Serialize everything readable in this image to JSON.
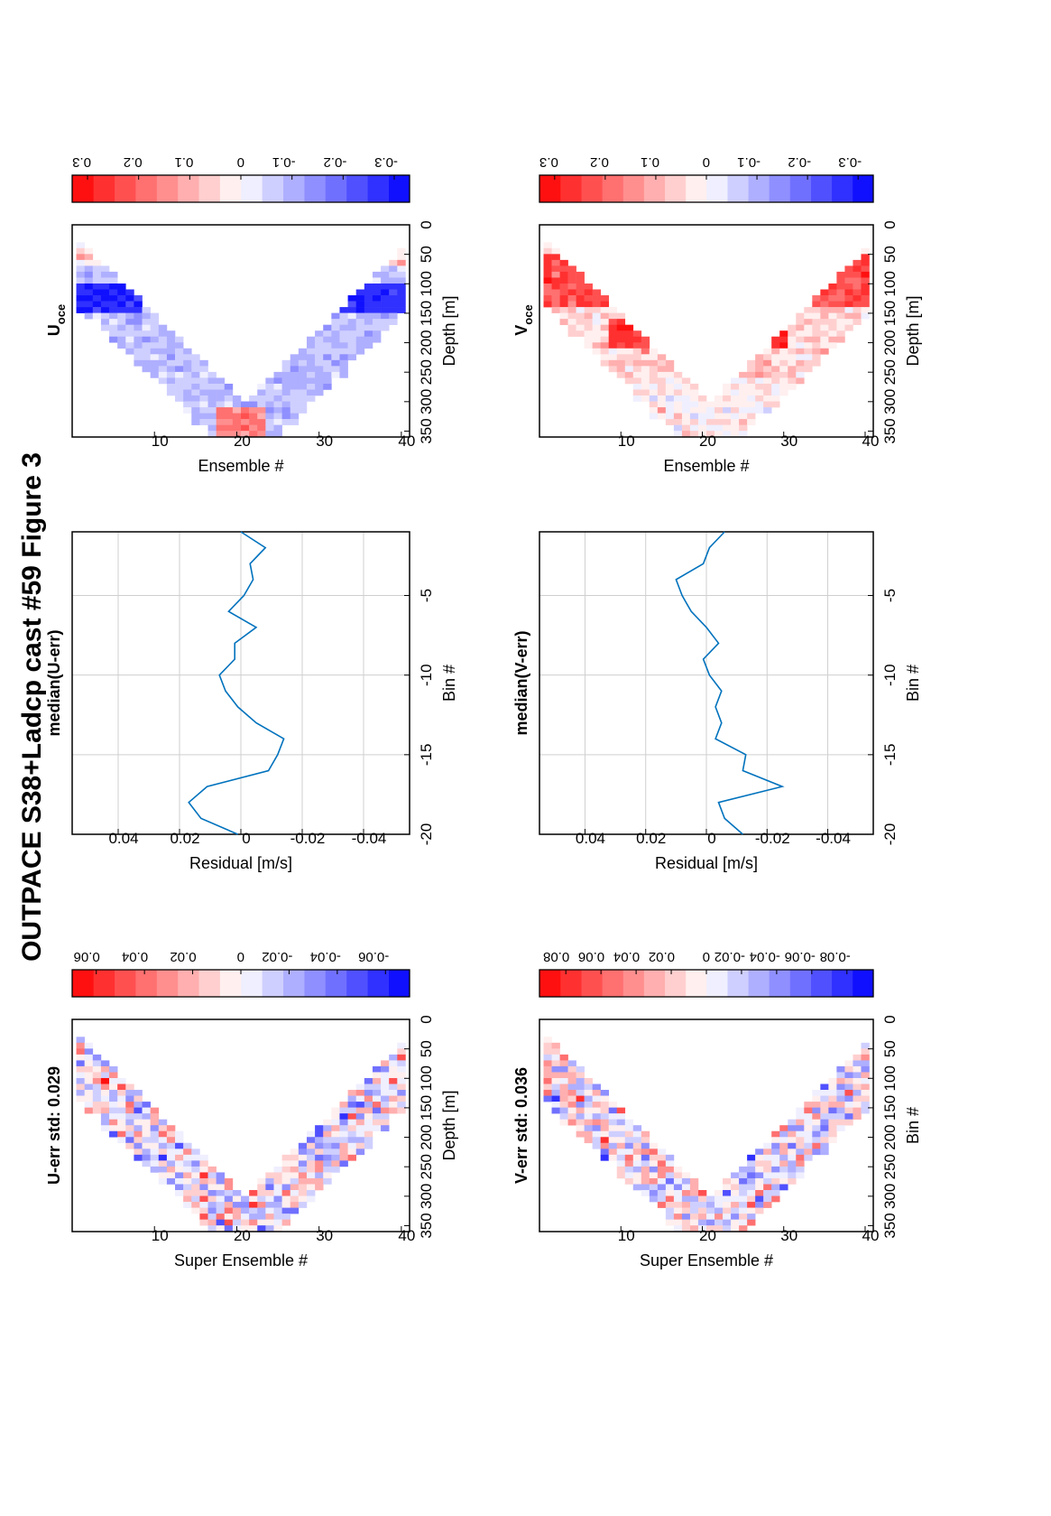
{
  "figure_title": "OUTPACE S38+Ladcp cast #59  Figure 3",
  "orientation": "landscape page rotated 90° counter-clockwise",
  "colors": {
    "red": "#ff0000",
    "white": "#ffffff",
    "blue": "#0000ff",
    "line": "#0072bd",
    "grid": "#cfcfcf"
  },
  "chart_data": [
    {
      "id": "u_err",
      "type": "heatmap",
      "title": "U-err std: 0.029",
      "xlabel": "Super Ensemble #",
      "ylabel": "Depth [m]",
      "xlim": [
        0,
        41
      ],
      "ylim": [
        0,
        360
      ],
      "xticks": [
        10,
        20,
        30,
        40
      ],
      "yticks": [
        0,
        50,
        100,
        150,
        200,
        250,
        300,
        350
      ],
      "colorbar": {
        "ticks": [
          0.06,
          0.04,
          0.02,
          0,
          -0.02,
          -0.04,
          -0.06
        ],
        "tick_labels": [
          "0.06",
          "0.04",
          "0.02",
          "0",
          "-0.02",
          "-0.04",
          "-0.06"
        ],
        "range": [
          -0.07,
          0.07
        ]
      },
      "shape": "V-shaped cast coverage: upper depth ~40 m at ensembles 1 and 41, deepest ~350 m at ensemble 21, band ~100 m thick",
      "notes": "random residual noise, mostly within ±0.03 with scattered ±0.07 extremes"
    },
    {
      "id": "median_u",
      "type": "line",
      "title": "median(U-err)",
      "xlabel": "Residual [m/s]",
      "ylabel": "Bin #",
      "xlim": [
        -0.055,
        0.055
      ],
      "ylim": [
        -1,
        -20
      ],
      "xticks": [
        -0.04,
        -0.02,
        0,
        0.02,
        0.04
      ],
      "xtick_labels": [
        "-0.04",
        "-0.02",
        "0",
        "0.02",
        "0.04"
      ],
      "yticks": [
        -5,
        -10,
        -15,
        -20
      ],
      "ytick_labels": [
        "-5",
        "-10",
        "-15",
        "-20"
      ],
      "grid": true,
      "series": [
        {
          "bin": [
            -1,
            -2,
            -3,
            -4,
            -5,
            -6,
            -7,
            -8,
            -9,
            -10,
            -11,
            -12,
            -13,
            -14,
            -15,
            -16,
            -17,
            -18,
            -19,
            -20
          ],
          "residual": [
            0.0,
            -0.008,
            -0.003,
            -0.004,
            -0.001,
            0.004,
            -0.005,
            0.002,
            0.002,
            0.007,
            0.005,
            0.001,
            -0.005,
            -0.014,
            -0.012,
            -0.009,
            0.011,
            0.017,
            0.013,
            0.001
          ]
        }
      ]
    },
    {
      "id": "u_oce",
      "type": "heatmap",
      "title": "U",
      "title_subscript": "oce",
      "xlabel": "Ensemble #",
      "ylabel": "Depth [m]",
      "xlim": [
        0,
        41
      ],
      "ylim": [
        0,
        360
      ],
      "xticks": [
        10,
        20,
        30,
        40
      ],
      "yticks": [
        0,
        50,
        100,
        150,
        200,
        250,
        300,
        350
      ],
      "colorbar": {
        "ticks": [
          0.3,
          0.2,
          0.1,
          0,
          -0.1,
          -0.2,
          -0.3
        ],
        "tick_labels": [
          "0.3",
          "0.2",
          "0.1",
          "0",
          "-0.1",
          "-0.2",
          "-0.3"
        ],
        "range": [
          -0.33,
          0.33
        ]
      },
      "shape": "V-shaped coverage",
      "notes": "strong negative core ~-0.3 near 100–140 m, weakly negative 150–300 m, positive ~0.2 near 320–340 m at ensembles 19–22"
    },
    {
      "id": "v_err",
      "type": "heatmap",
      "title": "V-err std: 0.036",
      "xlabel": "Super Ensemble #",
      "ylabel": "Bin #",
      "xlim": [
        0,
        41
      ],
      "ylim": [
        0,
        360
      ],
      "xticks": [
        10,
        20,
        30,
        40
      ],
      "yticks": [
        0,
        50,
        100,
        150,
        200,
        250,
        300,
        350
      ],
      "colorbar": {
        "ticks": [
          0.08,
          0.06,
          0.04,
          0.02,
          0,
          -0.02,
          -0.04,
          -0.06,
          -0.08
        ],
        "tick_labels": [
          "0.08",
          "0.06",
          "0.04",
          "0.02",
          "0",
          "-0.02",
          "-0.04",
          "-0.06",
          "-0.08"
        ],
        "range": [
          -0.095,
          0.095
        ]
      },
      "shape": "V-shaped coverage",
      "notes": "random residual noise, red cluster near 150–180 m at ensembles 26–28"
    },
    {
      "id": "median_v",
      "type": "line",
      "title": "median(V-err)",
      "xlabel": "Residual [m/s]",
      "ylabel": "Bin #",
      "xlim": [
        -0.055,
        0.055
      ],
      "ylim": [
        -1,
        -20
      ],
      "xticks": [
        -0.04,
        -0.02,
        0,
        0.02,
        0.04
      ],
      "xtick_labels": [
        "-0.04",
        "-0.02",
        "0",
        "0.02",
        "0.04"
      ],
      "yticks": [
        -5,
        -10,
        -15,
        -20
      ],
      "ytick_labels": [
        "-5",
        "-10",
        "-15",
        "-20"
      ],
      "grid": true,
      "series": [
        {
          "bin": [
            -1,
            -2,
            -3,
            -4,
            -5,
            -6,
            -7,
            -8,
            -9,
            -10,
            -11,
            -12,
            -13,
            -14,
            -15,
            -16,
            -17,
            -18,
            -19,
            -20
          ],
          "residual": [
            -0.006,
            -0.001,
            0.001,
            0.01,
            0.008,
            0.005,
            0.0,
            -0.004,
            0.001,
            -0.001,
            -0.005,
            -0.003,
            -0.005,
            -0.003,
            -0.013,
            -0.012,
            -0.025,
            -0.004,
            -0.006,
            -0.012
          ]
        }
      ]
    },
    {
      "id": "v_oce",
      "type": "heatmap",
      "title": "V",
      "title_subscript": "oce",
      "xlabel": "Ensemble #",
      "ylabel": "Depth [m]",
      "xlim": [
        0,
        41
      ],
      "ylim": [
        0,
        360
      ],
      "xticks": [
        10,
        20,
        30,
        40
      ],
      "yticks": [
        0,
        50,
        100,
        150,
        200,
        250,
        300,
        350
      ],
      "colorbar": {
        "ticks": [
          0.3,
          0.2,
          0.1,
          0,
          -0.1,
          -0.2,
          -0.3
        ],
        "tick_labels": [
          "0.3",
          "0.2",
          "0.1",
          "0",
          "-0.1",
          "-0.2",
          "-0.3"
        ],
        "range": [
          -0.33,
          0.33
        ]
      },
      "shape": "V-shaped coverage",
      "notes": "strong positive 50–130 m (~0.25–0.3), positive core near 170–200 m (~0.3), weak values deeper"
    }
  ]
}
